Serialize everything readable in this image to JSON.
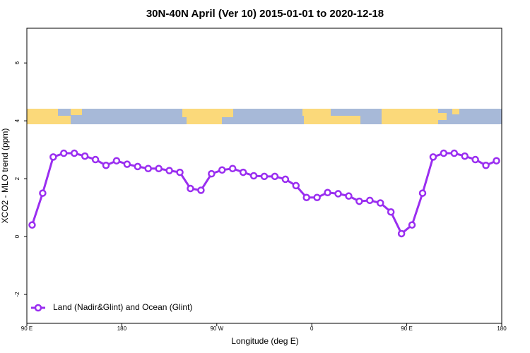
{
  "chart_data": {
    "type": "line",
    "title": "30N-40N April (Ver 10)   2015-01-01 to 2020-12-18",
    "x_label": "Longitude (deg E)",
    "y_label": "XCO2 - MLO trend (ppm)",
    "x": [
      95,
      105,
      115,
      125,
      135,
      145,
      155,
      165,
      175,
      185,
      195,
      205,
      215,
      225,
      235,
      245,
      255,
      265,
      275,
      285,
      295,
      305,
      315,
      325,
      335,
      345,
      355,
      365,
      375,
      385,
      395,
      405,
      415,
      425,
      435,
      445,
      455,
      465,
      475,
      485,
      495,
      505,
      515,
      525,
      535
    ],
    "series": [
      {
        "name": "Land (Nadir&Glint) and Ocean (Glint)",
        "color": "#9a2ef0",
        "values": [
          0.4,
          1.5,
          2.75,
          2.88,
          2.88,
          2.78,
          2.66,
          2.46,
          2.62,
          2.5,
          2.42,
          2.35,
          2.35,
          2.28,
          2.22,
          1.66,
          1.6,
          2.17,
          2.3,
          2.35,
          2.22,
          2.1,
          2.08,
          2.08,
          1.98,
          1.76,
          1.35,
          1.35,
          1.52,
          1.48,
          1.4,
          1.22,
          1.25,
          1.16,
          0.85,
          0.1,
          0.4,
          1.5,
          2.75,
          2.88,
          2.88,
          2.78,
          2.66,
          2.46,
          2.62
        ]
      }
    ],
    "xlim": [
      90,
      540
    ],
    "xticks": [
      {
        "value": 90,
        "label": "90 E"
      },
      {
        "value": 180,
        "label": "180"
      },
      {
        "value": 270,
        "label": "90 W"
      },
      {
        "value": 360,
        "label": "0"
      },
      {
        "value": 450,
        "label": "90 E"
      },
      {
        "value": 540,
        "label": "180"
      }
    ],
    "ylim": [
      -3,
      7.2
    ],
    "yticks": [
      {
        "value": -2,
        "label": "-2"
      },
      0,
      2,
      4,
      6
    ],
    "legend": "bottom-left"
  }
}
